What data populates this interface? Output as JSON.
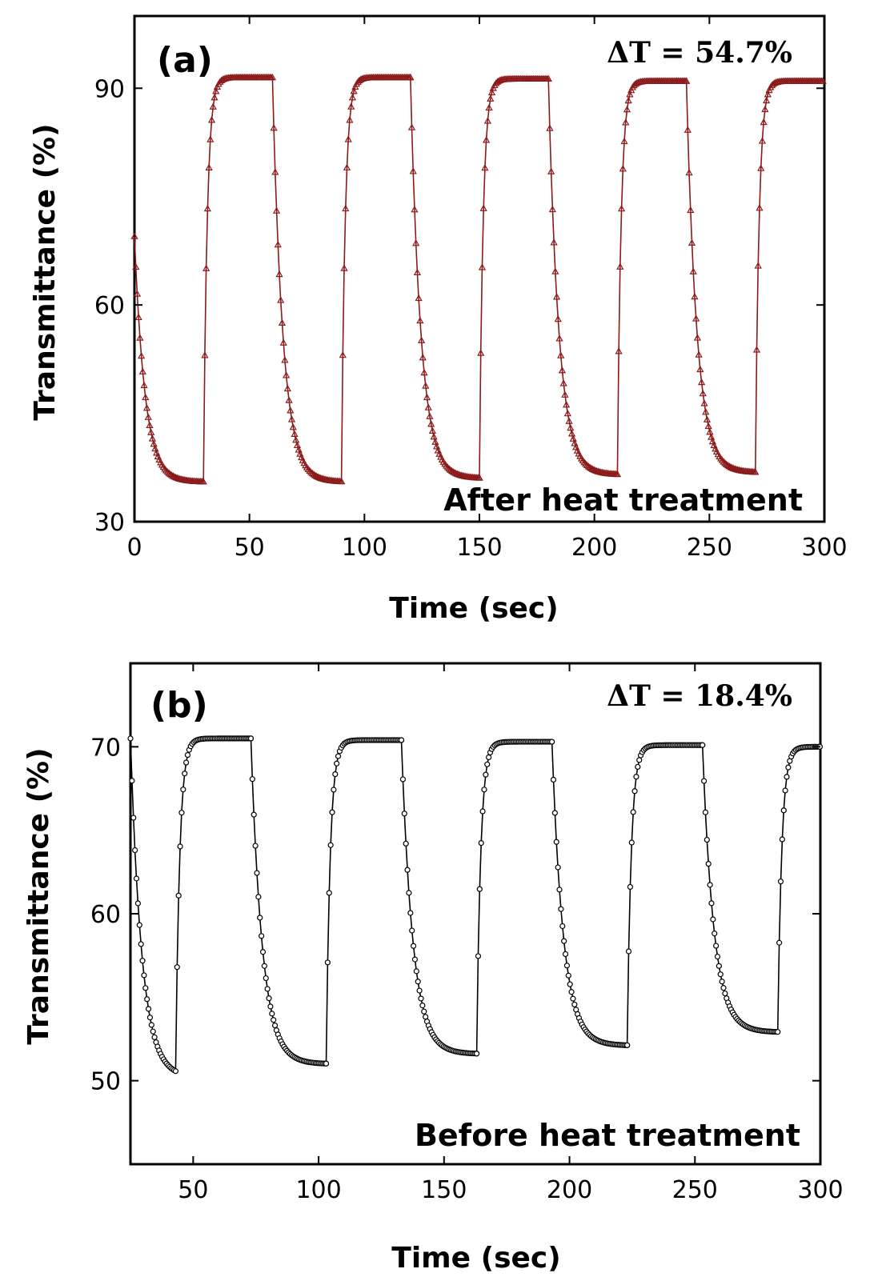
{
  "chart_data": [
    {
      "type": "line",
      "panel_label": "(a)",
      "annotation": "ΔT = 54.7%",
      "title": "After heat treatment",
      "xlabel": "Time (sec)",
      "ylabel": "Transmittance (%)",
      "xlim": [
        0,
        300
      ],
      "ylim": [
        30,
        100
      ],
      "x_ticks": [
        "0",
        "50",
        "100",
        "150",
        "200",
        "250",
        "300"
      ],
      "y_ticks": [
        "30",
        "60",
        "90"
      ],
      "marker": "triangle",
      "color": "#8b1a1a",
      "series": [
        {
          "name": "After heat treatment",
          "start_value": 69.5,
          "cycles": [
            {
              "t_start": 0,
              "t_switch": 30,
              "t_end": 60,
              "bleached": 91.5,
              "colored": 35.5
            },
            {
              "t_start": 60,
              "t_switch": 90,
              "t_end": 120,
              "bleached": 91.5,
              "colored": 35.5
            },
            {
              "t_start": 120,
              "t_switch": 150,
              "t_end": 180,
              "bleached": 91.3,
              "colored": 36.0
            },
            {
              "t_start": 180,
              "t_switch": 210,
              "t_end": 240,
              "bleached": 91.0,
              "colored": 36.5
            },
            {
              "t_start": 240,
              "t_switch": 270,
              "t_end": 300,
              "bleached": 91.0,
              "colored": 36.8
            }
          ]
        }
      ]
    },
    {
      "type": "line",
      "panel_label": "(b)",
      "annotation": "ΔT = 18.4%",
      "title": "Before heat treatment",
      "xlabel": "Time (sec)",
      "ylabel": "Transmittance (%)",
      "xlim": [
        25,
        300
      ],
      "ylim": [
        45,
        75
      ],
      "x_ticks": [
        "50",
        "100",
        "150",
        "200",
        "250",
        "300"
      ],
      "y_ticks": [
        "50",
        "60",
        "70"
      ],
      "marker": "circle",
      "color": "#000000",
      "series": [
        {
          "name": "Before heat treatment",
          "start_value": 70.5,
          "cycles": [
            {
              "t_start": 25,
              "t_switch": 43,
              "t_end": 73,
              "bleached": 70.5,
              "colored": 50.2
            },
            {
              "t_start": 73,
              "t_switch": 103,
              "t_end": 133,
              "bleached": 70.4,
              "colored": 51.0
            },
            {
              "t_start": 133,
              "t_switch": 163,
              "t_end": 193,
              "bleached": 70.3,
              "colored": 51.6
            },
            {
              "t_start": 193,
              "t_switch": 223,
              "t_end": 253,
              "bleached": 70.1,
              "colored": 52.1
            },
            {
              "t_start": 253,
              "t_switch": 283,
              "t_end": 300,
              "bleached": 70.0,
              "colored": 52.9
            }
          ]
        }
      ]
    }
  ]
}
